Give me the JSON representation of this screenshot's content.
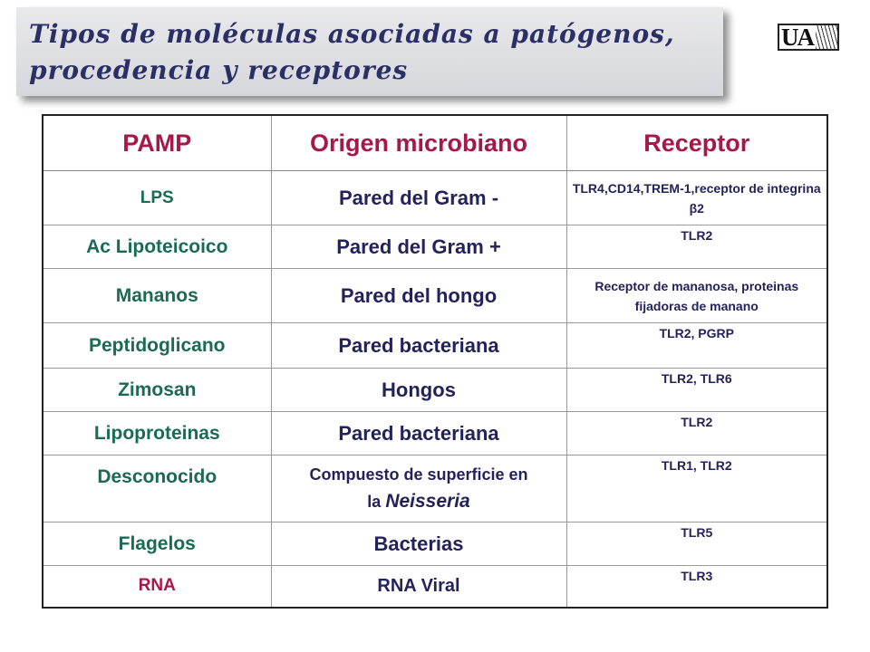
{
  "title": {
    "line1": "Tipos de moléculas asociadas a patógenos,",
    "line2": "procedencia y receptores"
  },
  "logo": {
    "text": "UA"
  },
  "table": {
    "headers": [
      "PAMP",
      "Origen microbiano",
      "Receptor"
    ],
    "rows": [
      {
        "pamp": "LPS",
        "origin": "Pared del Gram -",
        "receptor": "TLR4,CD14,TREM-1,receptor de integrina β2"
      },
      {
        "pamp": "Ac Lipoteicoico",
        "origin": "Pared del Gram +",
        "receptor": "TLR2"
      },
      {
        "pamp": "Mananos",
        "origin": "Pared del hongo",
        "receptor": "Receptor de mananosa, proteinas fijadoras de manano"
      },
      {
        "pamp": "Peptidoglicano",
        "origin": "Pared bacteriana",
        "receptor": "TLR2, PGRP"
      },
      {
        "pamp": "Zimosan",
        "origin": "Hongos",
        "receptor": "TLR2, TLR6"
      },
      {
        "pamp": "Lipoproteinas",
        "origin": "Pared bacteriana",
        "receptor": "TLR2"
      },
      {
        "pamp": "Desconocido",
        "origin": "Compuesto de superficie en",
        "origin_prefix": "la",
        "origin_italic": "Neisseria",
        "receptor": "TLR1, TLR2"
      },
      {
        "pamp": "Flagelos",
        "origin": "Bacterias",
        "receptor": "TLR5"
      },
      {
        "pamp": "RNA",
        "origin": "RNA Viral",
        "receptor": "TLR3"
      }
    ]
  }
}
